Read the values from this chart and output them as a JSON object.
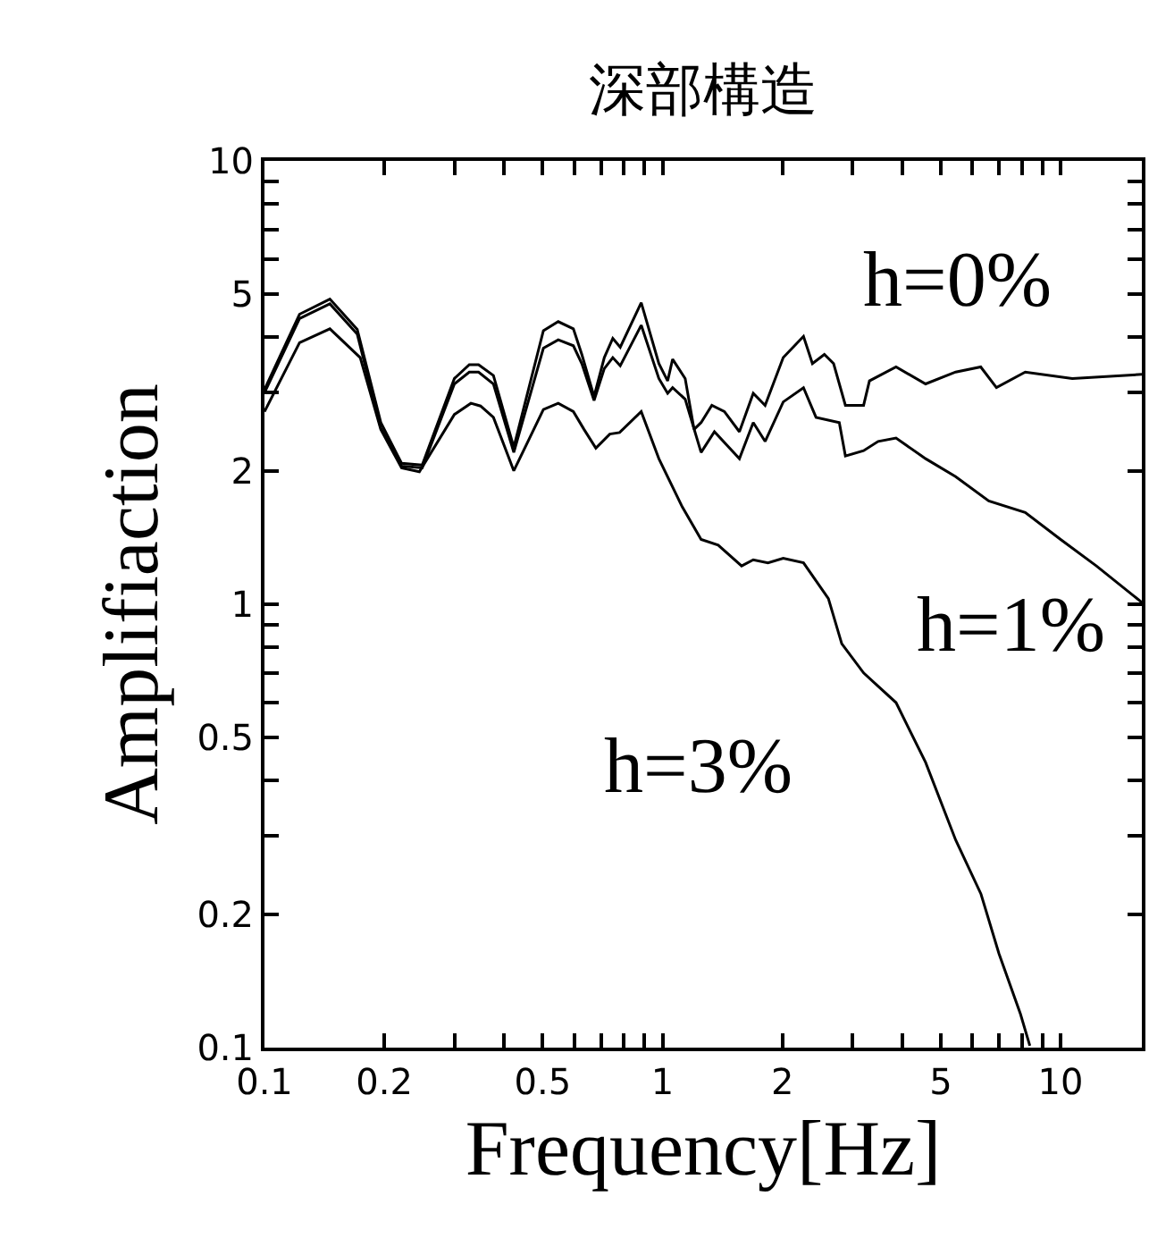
{
  "chart_data": {
    "type": "line",
    "title": "深部構造",
    "xlabel": "Frequency[Hz]",
    "ylabel": "Amplifiaction",
    "log": "xy",
    "grid": false,
    "legend": "right",
    "marker": "none",
    "line_style": "solid",
    "xlim": [
      0.1,
      16
    ],
    "ylim": [
      0.1,
      10
    ],
    "xticks": [
      0.1,
      0.2,
      {
        "value": 0.3,
        "label": null
      },
      {
        "value": 0.4,
        "label": null
      },
      0.5,
      {
        "value": 0.6,
        "label": null
      },
      {
        "value": 0.7,
        "label": null
      },
      {
        "value": 0.8,
        "label": null
      },
      {
        "value": 0.9,
        "label": null
      },
      1,
      2,
      {
        "value": 3,
        "label": null
      },
      {
        "value": 4,
        "label": null
      },
      5,
      {
        "value": 6,
        "label": null
      },
      {
        "value": 7,
        "label": null
      },
      {
        "value": 8,
        "label": null
      },
      {
        "value": 9,
        "label": null
      },
      10
    ],
    "yticks": [
      0.1,
      0.2,
      {
        "value": 0.3,
        "label": null
      },
      {
        "value": 0.4,
        "label": null
      },
      0.5,
      {
        "value": 0.6,
        "label": null
      },
      {
        "value": 0.7,
        "label": null
      },
      {
        "value": 0.8,
        "label": null
      },
      {
        "value": 0.9,
        "label": null
      },
      1,
      2,
      {
        "value": 3,
        "label": null
      },
      {
        "value": 4,
        "label": null
      },
      5,
      {
        "value": 6,
        "label": null
      },
      {
        "value": 7,
        "label": null
      },
      {
        "value": 8,
        "label": null
      },
      {
        "value": 9,
        "label": null
      },
      10
    ],
    "series": [
      {
        "name": "h=0%",
        "color": "#000000",
        "x": [
          0.1,
          0.1225,
          0.146,
          0.171,
          0.196,
          0.221,
          0.249,
          0.3,
          0.327,
          0.345,
          0.376,
          0.423,
          0.502,
          0.547,
          0.597,
          0.627,
          0.673,
          0.714,
          0.75,
          0.783,
          0.884,
          0.979,
          1.03,
          1.06,
          1.14,
          1.2,
          1.25,
          1.33,
          1.43,
          1.56,
          1.69,
          1.81,
          2.01,
          2.26,
          2.38,
          2.55,
          2.69,
          2.88,
          3.2,
          3.31,
          3.86,
          4.58,
          5.45,
          6.3,
          6.9,
          8.15,
          10.7,
          16
        ],
        "values": [
          3.05,
          4.51,
          4.88,
          4.17,
          2.57,
          2.08,
          2.06,
          3.23,
          3.47,
          3.47,
          3.28,
          2.26,
          4.14,
          4.34,
          4.18,
          3.66,
          2.94,
          3.6,
          3.98,
          3.8,
          4.79,
          3.49,
          3.19,
          3.57,
          3.23,
          2.48,
          2.57,
          2.81,
          2.72,
          2.45,
          2.99,
          2.81,
          3.6,
          4.02,
          3.49,
          3.66,
          3.49,
          2.81,
          2.81,
          3.19,
          3.43,
          3.14,
          3.34,
          3.43,
          3.08,
          3.34,
          3.23,
          3.3
        ]
      },
      {
        "name": "h=1%",
        "color": "#000000",
        "x": [
          0.1,
          0.1225,
          0.146,
          0.171,
          0.196,
          0.221,
          0.249,
          0.3,
          0.327,
          0.345,
          0.376,
          0.423,
          0.502,
          0.547,
          0.597,
          0.627,
          0.673,
          0.714,
          0.75,
          0.783,
          0.884,
          0.979,
          1.03,
          1.06,
          1.14,
          1.25,
          1.35,
          1.56,
          1.69,
          1.81,
          2.01,
          2.26,
          2.43,
          2.78,
          2.88,
          3.2,
          3.48,
          3.86,
          4.58,
          5.45,
          6.6,
          8.15,
          10,
          12.3,
          16
        ],
        "values": [
          3.0,
          4.41,
          4.76,
          4.07,
          2.5,
          2.05,
          2.03,
          3.14,
          3.34,
          3.34,
          3.14,
          2.2,
          3.78,
          3.95,
          3.83,
          3.49,
          2.88,
          3.4,
          3.6,
          3.45,
          4.26,
          3.23,
          2.99,
          3.08,
          2.9,
          2.2,
          2.45,
          2.13,
          2.57,
          2.33,
          2.86,
          3.08,
          2.64,
          2.57,
          2.16,
          2.22,
          2.33,
          2.37,
          2.13,
          1.94,
          1.71,
          1.61,
          1.4,
          1.22,
          1.01
        ]
      },
      {
        "name": "h=3%",
        "color": "#000000",
        "x": [
          0.1,
          0.1225,
          0.146,
          0.174,
          0.196,
          0.221,
          0.245,
          0.3,
          0.33,
          0.349,
          0.376,
          0.423,
          0.502,
          0.547,
          0.597,
          0.635,
          0.68,
          0.737,
          0.78,
          0.884,
          0.979,
          1.12,
          1.25,
          1.38,
          1.58,
          1.69,
          1.84,
          2.01,
          2.26,
          2.61,
          2.82,
          3.2,
          3.86,
          4.58,
          5.45,
          6.31,
          7.0,
          7.93,
          8.37
        ],
        "values": [
          2.72,
          3.89,
          4.18,
          3.6,
          2.48,
          2.03,
          1.99,
          2.68,
          2.84,
          2.8,
          2.64,
          2.0,
          2.75,
          2.84,
          2.72,
          2.48,
          2.25,
          2.42,
          2.44,
          2.72,
          2.13,
          1.66,
          1.4,
          1.36,
          1.22,
          1.26,
          1.24,
          1.27,
          1.24,
          1.03,
          0.815,
          0.7,
          0.6,
          0.44,
          0.294,
          0.222,
          0.163,
          0.119,
          0.101
        ]
      }
    ]
  }
}
